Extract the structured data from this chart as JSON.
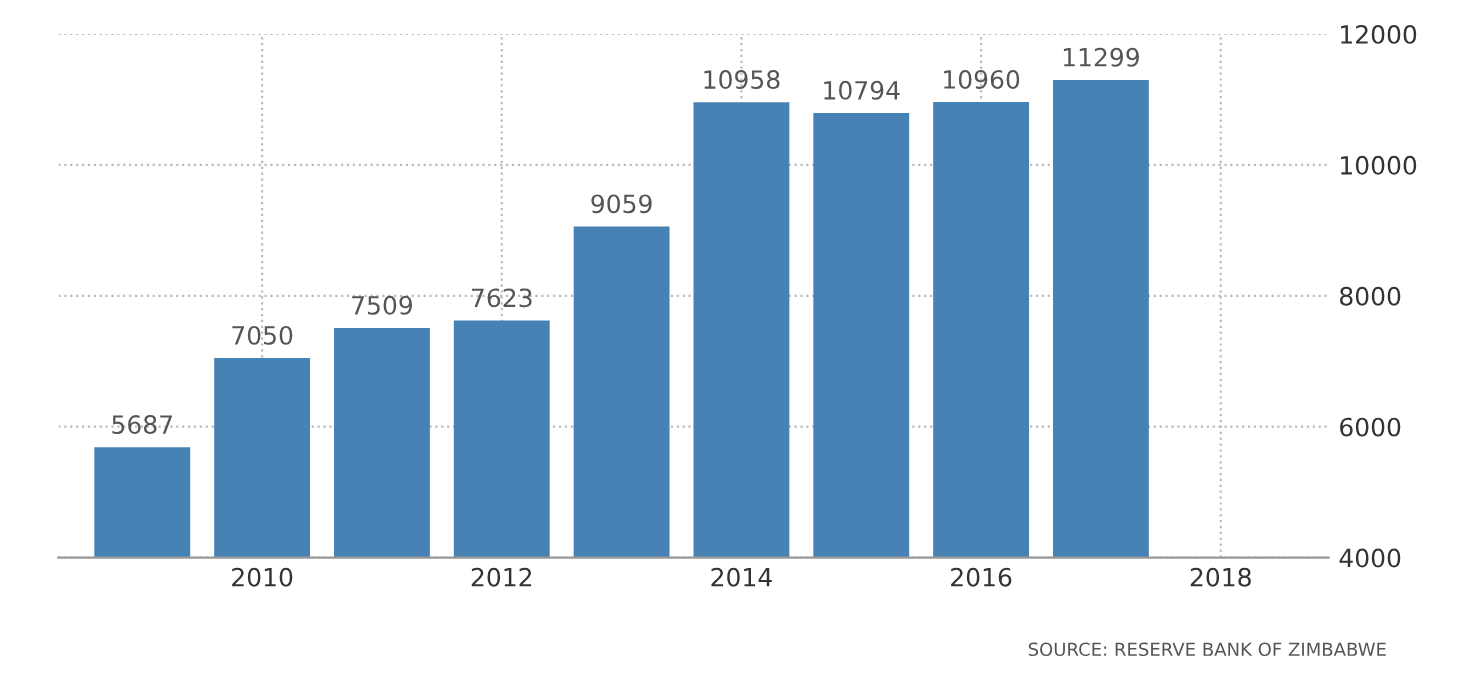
{
  "chart_data": {
    "type": "bar",
    "x": [
      2009,
      2010,
      2011,
      2012,
      2013,
      2014,
      2015,
      2016,
      2017
    ],
    "values": [
      5687,
      7050,
      7509,
      7623,
      9059,
      10958,
      10794,
      10960,
      11299
    ],
    "color": "#4682b4",
    "xlim": [
      2008.3,
      2018.9
    ],
    "xticks": [
      2010,
      2012,
      2014,
      2016,
      2018
    ],
    "ylim": [
      4000,
      12000
    ],
    "yticks": [
      4000,
      6000,
      8000,
      10000,
      12000
    ],
    "grid": true,
    "data_labels": true,
    "annotations": [
      "SOURCE: RESERVE BANK OF ZIMBABWE"
    ]
  }
}
